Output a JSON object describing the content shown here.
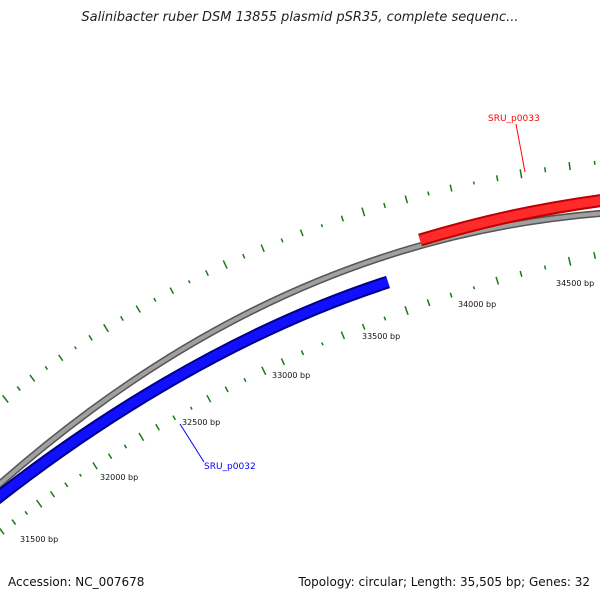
{
  "title": "Salinibacter ruber DSM 13855 plasmid pSR35, complete sequenc...",
  "footer": {
    "accession": "Accession: NC_007678",
    "summary": "Topology: circular; Length: 35,505 bp; Genes: 32"
  },
  "colors": {
    "backbone": "#888888",
    "forward_gene": "#ff0000",
    "reverse_gene": "#0000ff",
    "gc_ticks": "#1a7a1a"
  },
  "tick_labels": [
    "31500 bp",
    "32000 bp",
    "32500 bp",
    "33000 bp",
    "33500 bp",
    "34000 bp",
    "34500 bp"
  ],
  "genes": [
    {
      "name": "SRU_p0032",
      "strand": "reverse",
      "color": "#0000ff"
    },
    {
      "name": "SRU_p0033",
      "strand": "forward",
      "color": "#ff0000"
    }
  ]
}
